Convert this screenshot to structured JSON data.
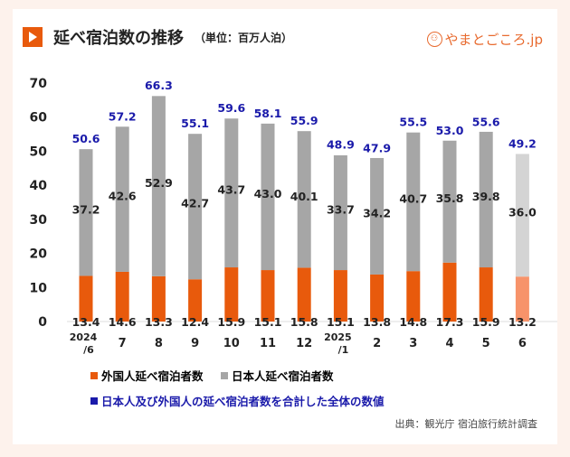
{
  "header": {
    "title": "延べ宿泊数の推移",
    "unit": "（単位：百万人泊）",
    "logo": "やまとごころ.jp",
    "icon": "play-icon"
  },
  "chart_data": {
    "type": "bar",
    "stacked": true,
    "categories": [
      "2024/6",
      "7",
      "8",
      "9",
      "10",
      "11",
      "12",
      "2025/1",
      "2",
      "3",
      "4",
      "5",
      "6"
    ],
    "series": [
      {
        "name": "外国人延べ宿泊者数",
        "color": "#e85a0c",
        "values": [
          13.4,
          14.6,
          13.3,
          12.4,
          15.9,
          15.1,
          15.8,
          15.1,
          13.8,
          14.8,
          17.3,
          15.9,
          13.2
        ]
      },
      {
        "name": "日本人延べ宿泊者数",
        "color": "#a6a6a6",
        "values": [
          37.2,
          42.6,
          52.9,
          42.7,
          43.7,
          43.0,
          40.1,
          33.7,
          34.2,
          40.7,
          35.8,
          39.8,
          36.0
        ]
      }
    ],
    "totals": {
      "name": "日本人及び外国人の延べ宿泊者数を合計した全体の数値",
      "color": "#1a1aaa",
      "values": [
        50.6,
        57.2,
        66.3,
        55.1,
        59.6,
        58.1,
        55.9,
        48.9,
        47.9,
        55.5,
        53.0,
        55.6,
        49.2
      ]
    },
    "highlight_last_lighter": true,
    "ylim": [
      0,
      70
    ],
    "yticks": [
      0,
      10,
      20,
      30,
      40,
      50,
      60,
      70
    ],
    "grid": false,
    "legend": "bottom"
  },
  "source": "出典：観光庁 宿泊旅行統計調査"
}
